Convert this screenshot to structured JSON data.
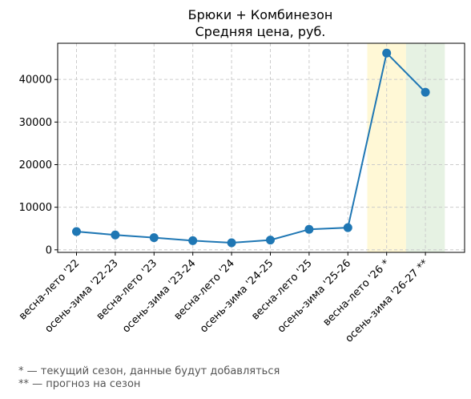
{
  "chart_data": {
    "type": "line",
    "title": "Брюки + Комбинезон",
    "subtitle": "Средняя цена, руб.",
    "xlabel": "",
    "ylabel": "",
    "categories": [
      "весна-лето '22",
      "осень-зима '22-23",
      "весна-лето '23",
      "осень-зима '23-24",
      "весна-лето '24",
      "осень-зима '24-25",
      "весна-лето '25",
      "осень-зима '25-26",
      "весна-лето '26 *",
      "осень-зима '26-27 **"
    ],
    "series": [
      {
        "values": [
          4300,
          3500,
          2850,
          2150,
          1650,
          2300,
          4800,
          5200,
          46200,
          37000
        ],
        "color": "#1f77b4"
      }
    ],
    "ylim": [
      -600,
      48500
    ],
    "yticks": [
      0,
      10000,
      20000,
      30000,
      40000
    ],
    "ytick_labels": [
      "0",
      "10000",
      "20000",
      "30000",
      "40000"
    ],
    "grid": true,
    "highlight_bands": [
      {
        "category": "весна-лето '26 *",
        "color": "#fff8d6"
      },
      {
        "category": "осень-зима '26-27 **",
        "color": "#e6f2e3"
      }
    ],
    "footnotes": [
      "* — текущий сезон, данные будут добавляться",
      "** — прогноз на сезон"
    ]
  }
}
